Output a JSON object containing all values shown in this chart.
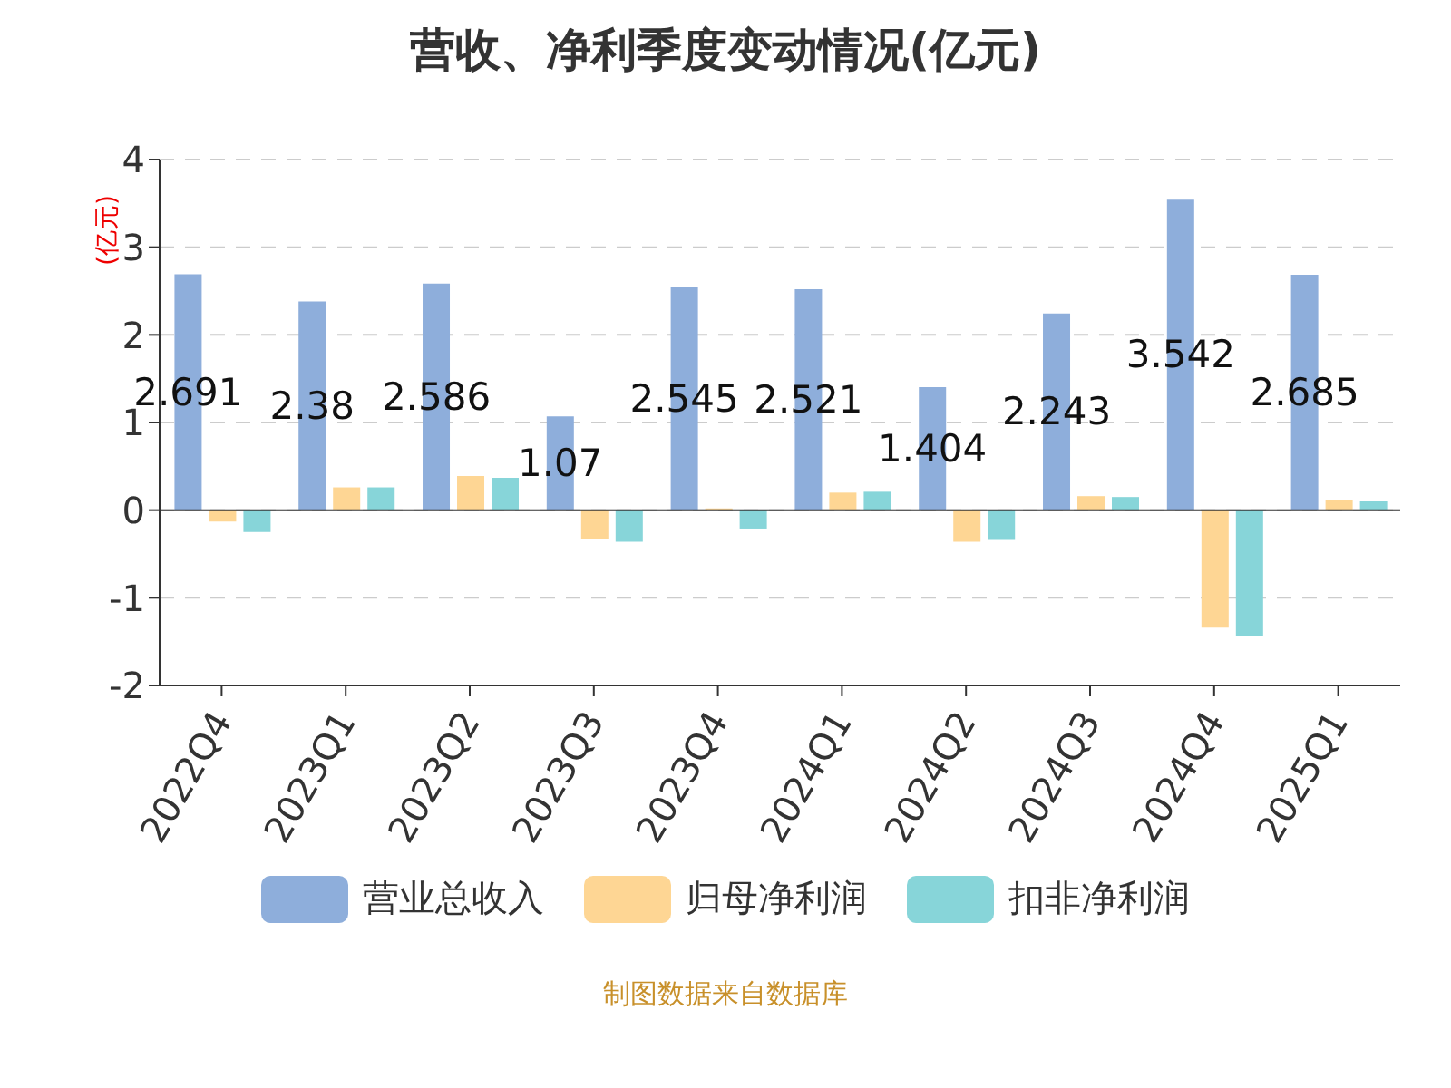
{
  "chart_data": {
    "type": "bar",
    "title": "营收、净利季度变动情况(亿元)",
    "ylabel": "(亿元)",
    "categories": [
      "2022Q4",
      "2023Q1",
      "2023Q2",
      "2023Q3",
      "2023Q4",
      "2024Q1",
      "2024Q2",
      "2024Q3",
      "2024Q4",
      "2025Q1"
    ],
    "series": [
      {
        "name": "营业总收入",
        "color": "#8eaedb",
        "values": [
          2.691,
          2.38,
          2.586,
          1.07,
          2.545,
          2.521,
          1.404,
          2.243,
          3.542,
          2.685
        ],
        "value_labels": [
          "2.691",
          "2.38",
          "2.586",
          "1.07",
          "2.545",
          "2.521",
          "1.404",
          "2.243",
          "3.542",
          "2.685"
        ]
      },
      {
        "name": "归母净利润",
        "color": "#fed694",
        "values": [
          -0.13,
          0.26,
          0.39,
          -0.33,
          0.02,
          0.2,
          -0.36,
          0.16,
          -1.34,
          0.12
        ]
      },
      {
        "name": "扣非净利润",
        "color": "#87d5d9",
        "values": [
          -0.25,
          0.26,
          0.37,
          -0.36,
          -0.21,
          0.21,
          -0.34,
          0.15,
          -1.43,
          0.1
        ]
      }
    ],
    "ylim": [
      -2,
      4
    ],
    "yticks": [
      -2,
      -1,
      0,
      1,
      2,
      3,
      4
    ],
    "grid": "y",
    "legend": "bottom",
    "annotations": [
      "制图数据来自数据库"
    ]
  }
}
